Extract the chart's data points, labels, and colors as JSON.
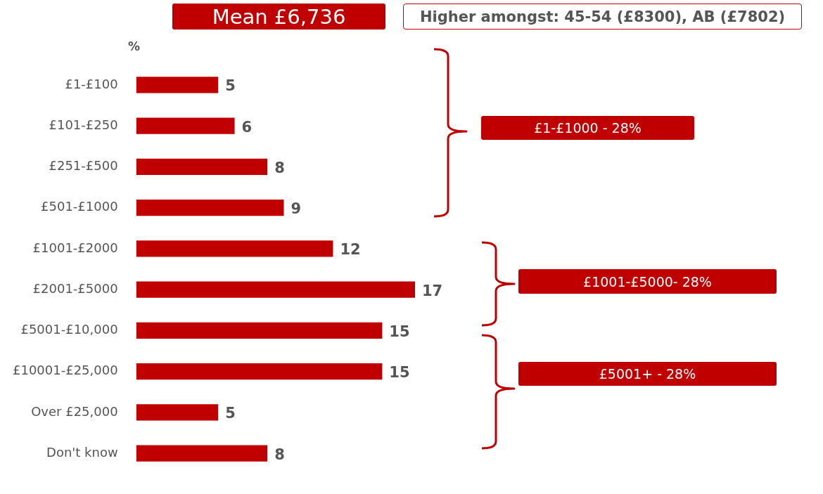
{
  "chart_data": {
    "type": "bar",
    "orientation": "horizontal",
    "categories": [
      "£1-£100",
      "£101-£250",
      "£251-£500",
      "£501-£1000",
      "£1001-£2000",
      "£2001-£5000",
      "£5001-£10,000",
      "£10001-£25,000",
      "Over £25,000",
      "Don't know"
    ],
    "values": [
      5,
      6,
      8,
      9,
      12,
      17,
      15,
      15,
      5,
      8
    ],
    "color": "#c00000",
    "xlabel": "%",
    "data_labels": true,
    "grid": false,
    "legend": false,
    "tick_labels": "y",
    "annotations": [
      "Mean £6,736",
      "Higher amongst: 45-54 (£8300), AB (£7802)",
      "£1-£1000 - 28%",
      "£1001-£5000- 28%",
      "£5001+ - 28%"
    ]
  }
}
